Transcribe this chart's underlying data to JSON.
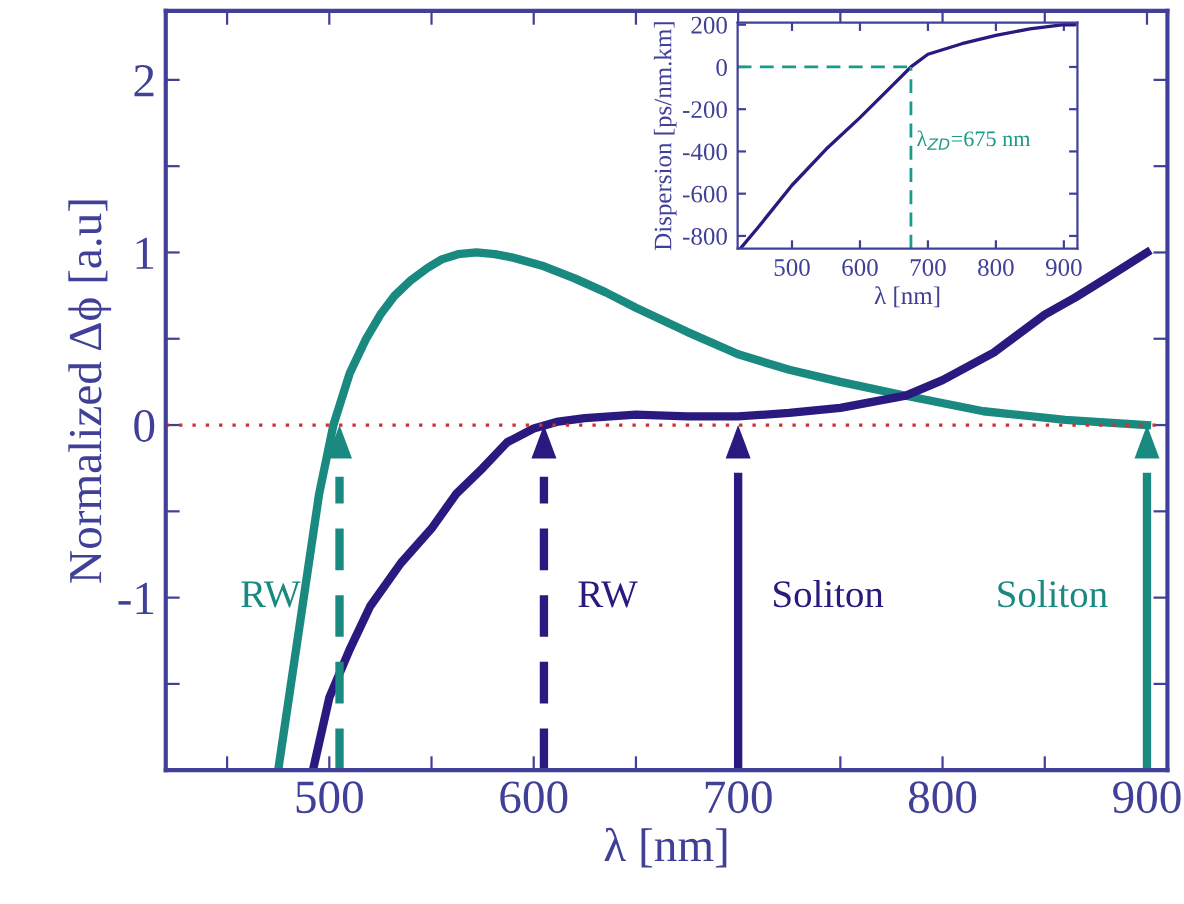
{
  "chart_data": [
    {
      "type": "line",
      "xlabel": "λ [nm]",
      "ylabel": "Normalized Δϕ [a.u]",
      "xlim": [
        420,
        910
      ],
      "ylim": [
        -2,
        2.4
      ],
      "xticks": [
        {
          "value": 450,
          "label": null
        },
        500,
        {
          "value": 550,
          "label": null
        },
        600,
        {
          "value": 650,
          "label": null
        },
        700,
        {
          "value": 750,
          "label": null
        },
        800,
        {
          "value": 850,
          "label": null
        },
        900
      ],
      "yticks": [
        {
          "value": -1.5,
          "label": null
        },
        -1,
        {
          "value": -0.5,
          "label": null
        },
        0,
        {
          "value": 0.5,
          "label": null
        },
        1,
        {
          "value": 1.5,
          "label": null
        },
        2
      ],
      "grid": false,
      "legend": false,
      "series": [
        {
          "color": "#1a8a80",
          "x": [
            475,
            485,
            495,
            502,
            510,
            518,
            525,
            532,
            540,
            548,
            555,
            563,
            572,
            581,
            590,
            605,
            620,
            635,
            650,
            675,
            700,
            725,
            750,
            782,
            820,
            860,
            900
          ],
          "values": [
            -2,
            -1.2,
            -0.4,
            0,
            0.3,
            0.5,
            0.64,
            0.75,
            0.84,
            0.91,
            0.96,
            0.99,
            1.0,
            0.99,
            0.97,
            0.92,
            0.85,
            0.77,
            0.68,
            0.54,
            0.41,
            0.32,
            0.25,
            0.17,
            0.08,
            0.03,
            0.0
          ]
        },
        {
          "color": "#2a1a80",
          "x": [
            492,
            500,
            510,
            520,
            535,
            550,
            562,
            575,
            587,
            600,
            612,
            625,
            650,
            675,
            700,
            725,
            750,
            782,
            800,
            825,
            850,
            865,
            880,
            900
          ],
          "values": [
            -2,
            -1.58,
            -1.3,
            -1.05,
            -0.8,
            -0.6,
            -0.4,
            -0.25,
            -0.1,
            -0.02,
            0.02,
            0.04,
            0.06,
            0.05,
            0.05,
            0.07,
            0.1,
            0.17,
            0.26,
            0.42,
            0.64,
            0.74,
            0.85,
            1.0
          ]
        }
      ],
      "ref_lines": [
        {
          "axis": "y",
          "value": 0,
          "color": "#cc3333",
          "line_style": "dotted"
        },
        {
          "axis": "x",
          "value": 505,
          "label": "RW",
          "color": "#1a8a80",
          "line_style": "dashed"
        },
        {
          "axis": "x",
          "value": 605,
          "label": "RW",
          "color": "#2a1a80",
          "line_style": "dashed"
        },
        {
          "axis": "x",
          "value": 700,
          "label": "Soliton",
          "color": "#2a1a80",
          "line_style": "solid"
        },
        {
          "axis": "x",
          "value": 900,
          "label": "Soliton",
          "color": "#1a8a80",
          "line_style": "solid"
        }
      ]
    },
    {
      "type": "line",
      "xlabel": "λ [nm]",
      "ylabel": "Dispersion [ps/nm.km]",
      "xlim": [
        420,
        920
      ],
      "ylim": [
        -860,
        210
      ],
      "xticks": [
        500,
        600,
        700,
        800,
        900
      ],
      "yticks": [
        -800,
        -600,
        -400,
        -200,
        0,
        200
      ],
      "grid": false,
      "legend": false,
      "series": [
        {
          "color": "#2a1a80",
          "x": [
            424,
            450,
            500,
            550,
            600,
            650,
            675,
            700,
            750,
            800,
            850,
            900,
            915
          ],
          "values": [
            -860,
            -760,
            -560,
            -390,
            -240,
            -80,
            0,
            60,
            110,
            150,
            180,
            200,
            200
          ]
        }
      ],
      "ref_lines": [
        {
          "axis": "y",
          "value": 0,
          "color": "#1a9a8a",
          "line_style": "dashed"
        },
        {
          "axis": "x",
          "value": 675,
          "label": "λ$_{ZD}$=675 nm",
          "color": "#1a9a8a",
          "line_style": "dashed"
        }
      ]
    }
  ]
}
